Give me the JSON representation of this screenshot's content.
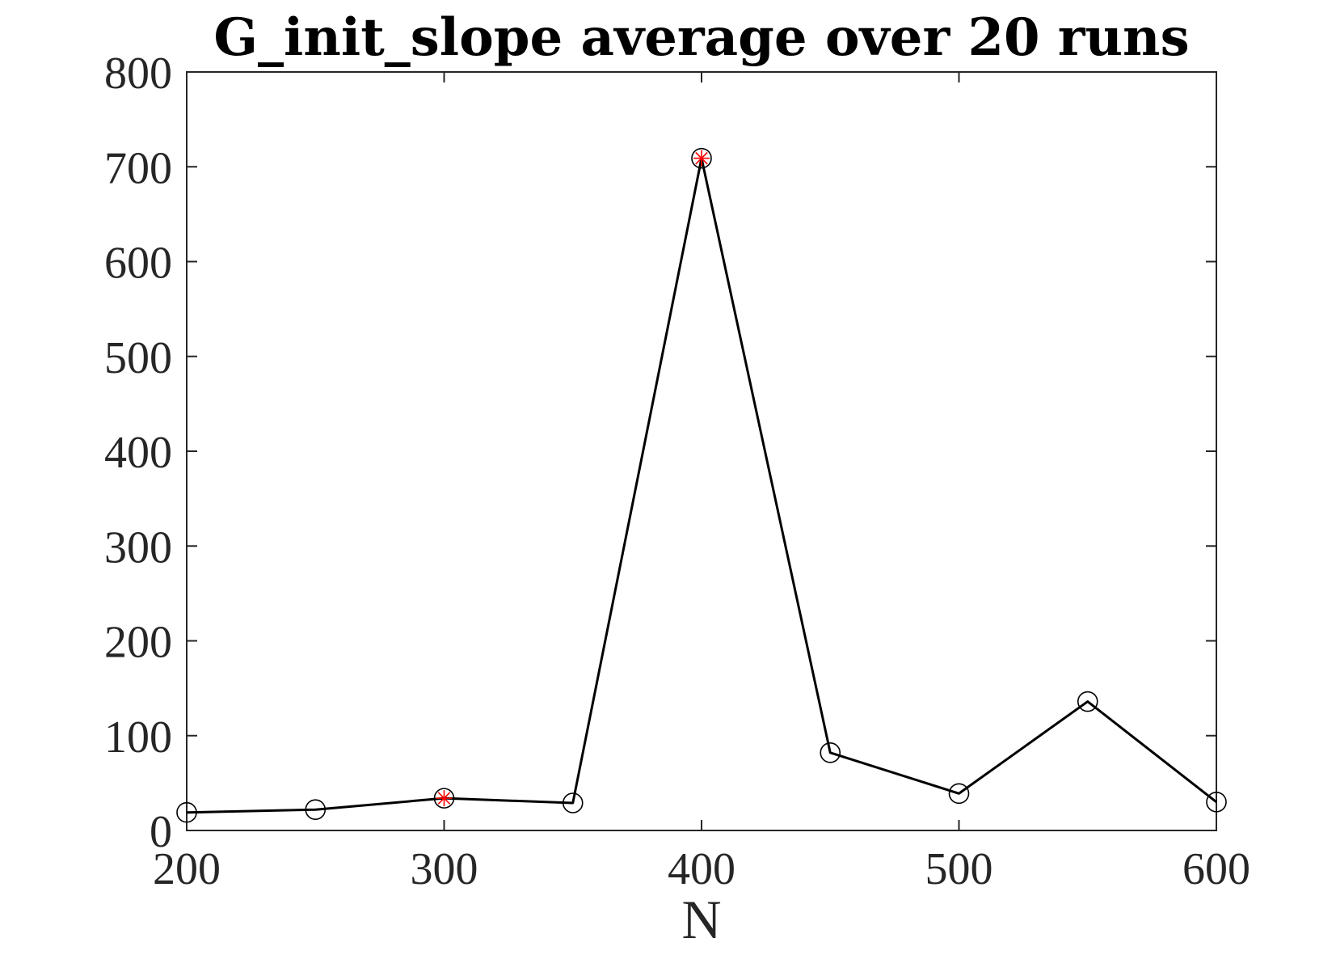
{
  "chart_data": {
    "type": "line",
    "title": "G_init_slope average over 20 runs",
    "xlabel": "N",
    "ylabel": "",
    "xlim": [
      200,
      600
    ],
    "ylim": [
      0,
      800
    ],
    "xticks": [
      200,
      300,
      400,
      500,
      600
    ],
    "yticks": [
      0,
      100,
      200,
      300,
      400,
      500,
      600,
      700,
      800
    ],
    "xtick_labels": [
      "200",
      "300",
      "400",
      "500",
      "600"
    ],
    "ytick_labels": [
      "0",
      "100",
      "200",
      "300",
      "400",
      "500",
      "600",
      "700",
      "800"
    ],
    "grid": false,
    "series": [
      {
        "x": [
          200,
          250,
          300,
          350,
          400,
          450,
          500,
          550,
          600
        ],
        "y": [
          19,
          22,
          34,
          29,
          709,
          82,
          39,
          136,
          30
        ],
        "line_color": "#000000",
        "marker": "circle",
        "marker_color": "#000000"
      }
    ],
    "highlight_points": {
      "x": [
        300,
        400
      ],
      "y": [
        34,
        709
      ],
      "marker": "asterisk",
      "marker_color": "#ff0000"
    }
  }
}
